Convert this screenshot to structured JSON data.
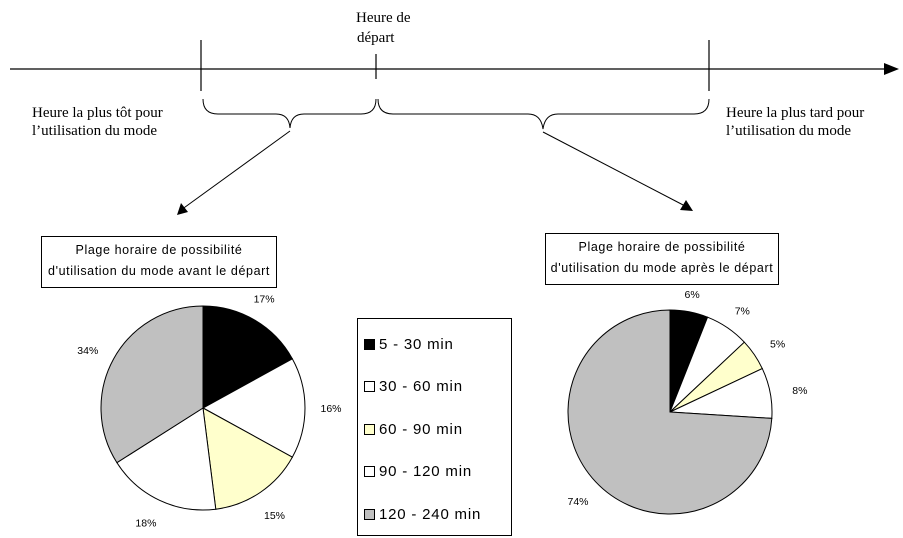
{
  "timeline": {
    "departure_label_line1": "Heure de",
    "departure_label_line2": "départ",
    "earliest_line1": "Heure la plus tôt pour",
    "earliest_line2": "l’utilisation du mode",
    "latest_line1": "Heure la plus tard pour",
    "latest_line2": "l’utilisation du mode"
  },
  "legend": [
    {
      "label": "5 - 30 min",
      "color": "#000000"
    },
    {
      "label": "30 - 60 min",
      "color": "#ffffff"
    },
    {
      "label": "60 - 90 min",
      "color": "#ffffcc"
    },
    {
      "label": "90 - 120 min",
      "color": "#ffffff"
    },
    {
      "label": "120 - 240 min",
      "color": "#c0c0c0"
    }
  ],
  "chart_data": [
    {
      "type": "pie",
      "title_line1": "Plage horaire de possibilité",
      "title_line2": "d'utilisation du mode avant le départ",
      "categories": [
        "5 - 30 min",
        "30 - 60 min",
        "60 - 90 min",
        "90 - 120 min",
        "120 - 240 min"
      ],
      "values": [
        17,
        16,
        15,
        18,
        34
      ],
      "labels": [
        "17%",
        "16%",
        "15%",
        "18%",
        "34%"
      ],
      "colors": [
        "#000000",
        "#ffffff",
        "#ffffcc",
        "#ffffff",
        "#c0c0c0"
      ]
    },
    {
      "type": "pie",
      "title_line1": "Plage horaire de possibilité",
      "title_line2": "d'utilisation du mode après le départ",
      "categories": [
        "5 - 30 min",
        "30 - 60 min",
        "60 - 90 min",
        "90 - 120 min",
        "120 - 240 min"
      ],
      "values": [
        6,
        7,
        5,
        8,
        74
      ],
      "labels": [
        "6%",
        "7%",
        "5%",
        "8%",
        "74%"
      ],
      "colors": [
        "#000000",
        "#ffffff",
        "#ffffcc",
        "#ffffff",
        "#c0c0c0"
      ]
    }
  ]
}
